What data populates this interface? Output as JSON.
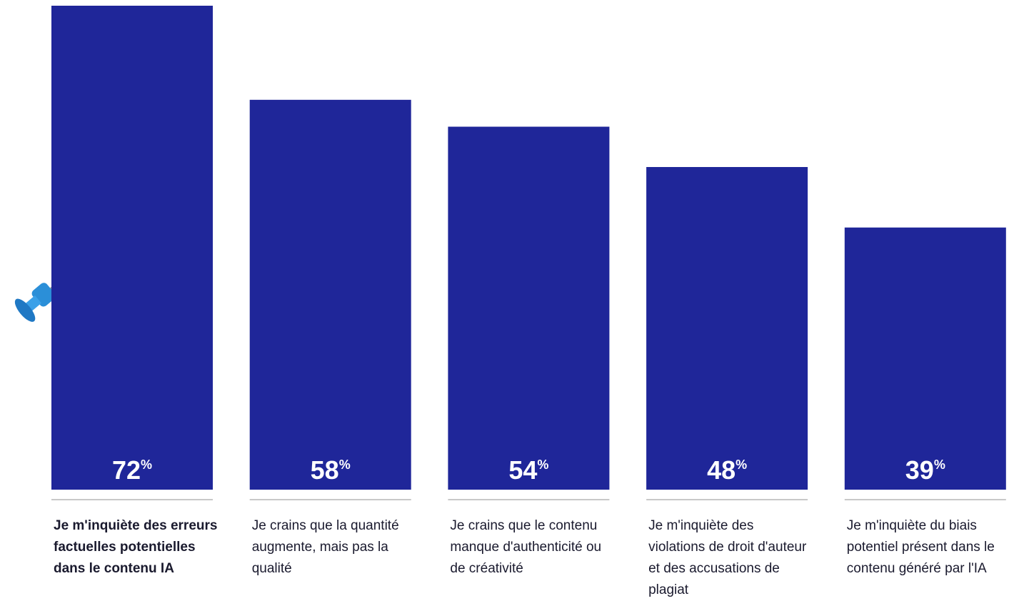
{
  "chart_data": {
    "type": "bar",
    "categories": [
      "Je m'inquiète des erreurs factuelles potentielles dans le contenu IA",
      "Je crains que la quantité augmente, mais pas la qualité",
      "Je crains que le contenu manque d'authenticité ou de créativité",
      "Je m'inquiète des violations de droit d'auteur et des accusations de plagiat",
      "Je m'inquiète du biais potentiel présent dans le contenu généré par l'IA"
    ],
    "values": [
      72,
      58,
      54,
      48,
      39
    ],
    "value_labels": [
      "72%",
      "58%",
      "54%",
      "48%",
      "39%"
    ],
    "color": "#1f2699"
  }
}
